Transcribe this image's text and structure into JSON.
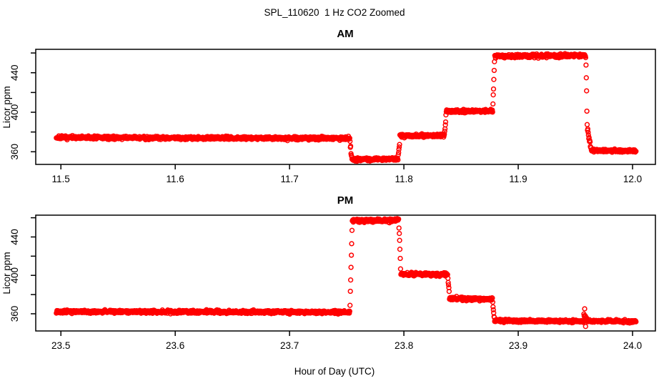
{
  "figure": {
    "title": "SPL_110620  1 Hz CO2 Zoomed",
    "xlabel": "Hour of Day (UTC)",
    "background_color": "#FFFFFF",
    "axis_color": "#000000",
    "point_color": "#FF0000",
    "marker": "open-circle"
  },
  "chart_data": {
    "type": "scatter",
    "marker": "open-circle",
    "sample_rate_hz": 1,
    "grid": false,
    "legend": "none",
    "panels": [
      {
        "title": "AM",
        "ylabel": "Licor ppm",
        "xlim": [
          11.478,
          12.02
        ],
        "ylim": [
          347.2,
          463.7
        ],
        "xticks": [
          11.5,
          11.6,
          11.7,
          11.8,
          11.9,
          12.0
        ],
        "xtick_labels": [
          "11.5",
          "11.6",
          "11.7",
          "11.8",
          "11.9",
          "12.0"
        ],
        "yticks": [
          360,
          380,
          400,
          420,
          440,
          460
        ],
        "ytick_labels": [
          "360",
          "",
          "400",
          "",
          "440",
          ""
        ],
        "segments": [
          [
            11.496,
            11.7526,
            374.4,
            373.6,
            0.8
          ],
          [
            11.7529,
            11.7543,
            369.0,
            355.0,
            1.2
          ],
          [
            11.7546,
            11.7948,
            352.3,
            352.7,
            0.7
          ],
          [
            11.7951,
            11.7962,
            356.0,
            369.0,
            1.2
          ],
          [
            11.7965,
            11.8354,
            376.2,
            376.6,
            0.8
          ],
          [
            11.8357,
            11.8368,
            381.0,
            396.0,
            1.2
          ],
          [
            11.8371,
            11.8776,
            400.8,
            401.3,
            0.8
          ],
          [
            11.8779,
            11.8792,
            408.0,
            450.0,
            1.5
          ],
          [
            11.8795,
            11.959,
            456.8,
            457.4,
            0.9
          ],
          [
            11.9593,
            11.9603,
            450.0,
            388.0,
            2.0
          ],
          [
            11.9606,
            11.9637,
            382.0,
            362.5,
            1.5
          ],
          [
            11.964,
            12.003,
            361.2,
            360.8,
            0.7
          ]
        ],
        "extra_points": []
      },
      {
        "title": "PM",
        "ylabel": "Licor ppm",
        "xlim": [
          23.478,
          24.02
        ],
        "ylim": [
          342.1,
          462.7
        ],
        "xticks": [
          23.5,
          23.6,
          23.7,
          23.8,
          23.9,
          24.0
        ],
        "xtick_labels": [
          "23.5",
          "23.6",
          "23.7",
          "23.8",
          "23.9",
          "24.0"
        ],
        "yticks": [
          360,
          380,
          400,
          420,
          440,
          460
        ],
        "ytick_labels": [
          "360",
          "",
          "400",
          "",
          "440",
          ""
        ],
        "segments": [
          [
            23.496,
            23.7526,
            362.3,
            361.6,
            0.8
          ],
          [
            23.7529,
            23.7546,
            368.0,
            447.0,
            1.5
          ],
          [
            23.7549,
            23.7954,
            457.0,
            457.6,
            0.9
          ],
          [
            23.7957,
            23.7971,
            452.0,
            409.0,
            1.5
          ],
          [
            23.7974,
            23.8382,
            401.4,
            400.8,
            0.8
          ],
          [
            23.8385,
            23.8396,
            396.0,
            383.0,
            1.2
          ],
          [
            23.8399,
            23.8774,
            375.9,
            375.3,
            0.8
          ],
          [
            23.8777,
            23.8791,
            370.0,
            356.0,
            1.2
          ],
          [
            23.8794,
            23.9571,
            352.7,
            352.2,
            0.7
          ],
          [
            23.9574,
            23.9601,
            358.0,
            354.5,
            1.3
          ],
          [
            23.9604,
            24.003,
            352.4,
            352.0,
            0.7
          ]
        ],
        "extra_points": [
          [
            23.9581,
            365.2
          ],
          [
            23.9589,
            346.8
          ]
        ]
      }
    ]
  }
}
